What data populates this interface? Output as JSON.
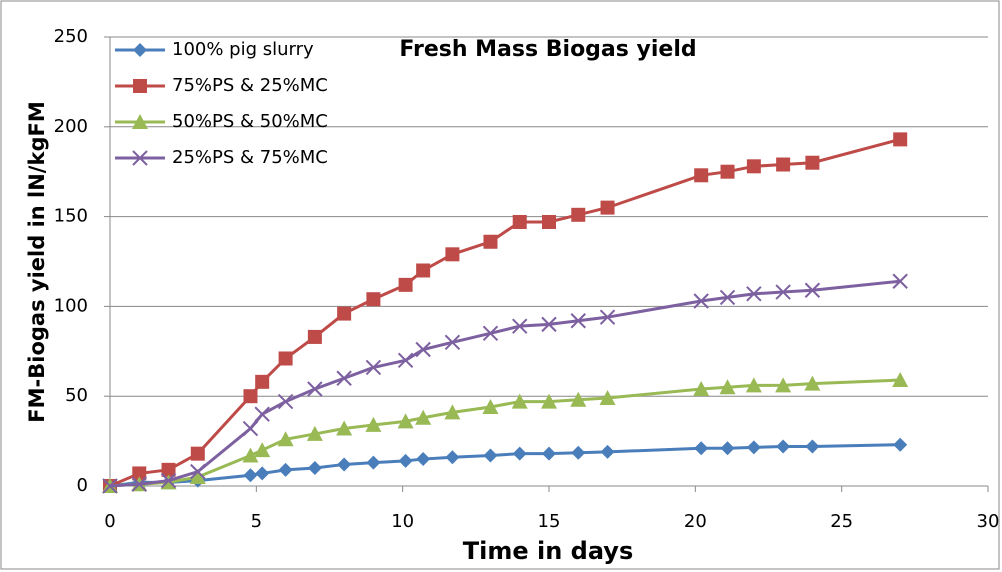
{
  "chart_data": {
    "type": "line",
    "title": "Fresh Mass Biogas yield",
    "x_label": "Time in days",
    "y_label": "FM-Biogas yield in lN/kgFM",
    "xlim": [
      0,
      30
    ],
    "xticks": [
      0,
      5,
      10,
      15,
      20,
      25,
      30
    ],
    "ylim": [
      0,
      250
    ],
    "yticks": [
      0,
      50,
      100,
      150,
      200,
      250
    ],
    "grid": true,
    "legend": "upper-left",
    "x": [
      0,
      1,
      2,
      3,
      4.8,
      5.2,
      6,
      7,
      8,
      9,
      10.1,
      10.7,
      11.7,
      13,
      14,
      15,
      16,
      17,
      20.2,
      21.1,
      22,
      23,
      24,
      27
    ],
    "series": [
      {
        "name": "100% pig slurry",
        "color": "#4a7ebb",
        "marker": "diamond",
        "values": [
          0,
          2,
          2,
          3,
          6,
          7,
          9,
          10,
          12,
          13,
          14,
          15,
          16,
          17,
          18,
          18,
          18.5,
          19,
          21,
          21,
          21.5,
          22,
          22,
          23
        ]
      },
      {
        "name": "75%PS & 25%MC",
        "color": "#be4b48",
        "marker": "square",
        "values": [
          0,
          7,
          9,
          18,
          50,
          58,
          71,
          83,
          96,
          104,
          112,
          120,
          129,
          136,
          147,
          147,
          151,
          155,
          173,
          175,
          178,
          179,
          180,
          193
        ]
      },
      {
        "name": "50%PS & 50%MC",
        "color": "#98b954",
        "marker": "triangle",
        "values": [
          0,
          1,
          2,
          5,
          17,
          20,
          26,
          29,
          32,
          34,
          36,
          38,
          41,
          44,
          47,
          47,
          48,
          49,
          54,
          55,
          56,
          56,
          57,
          59
        ]
      },
      {
        "name": "25%PS & 75%MC",
        "color": "#7d60a0",
        "marker": "x",
        "values": [
          0,
          1,
          3,
          8,
          32,
          40,
          47,
          54,
          60,
          66,
          70,
          76,
          80,
          85,
          89,
          90,
          92,
          94,
          103,
          105,
          107,
          108,
          109,
          114
        ]
      }
    ]
  }
}
